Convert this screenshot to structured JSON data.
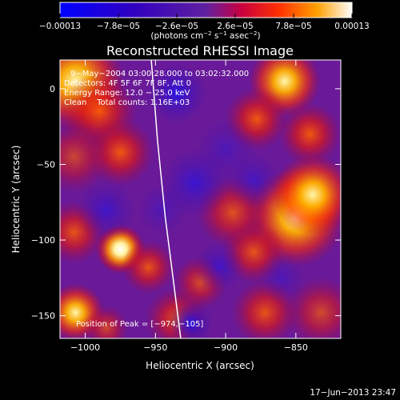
{
  "chart_data": {
    "type": "heatmap",
    "title": "Reconstructed RHESSI Image",
    "xlabel": "Heliocentric X (arcsec)",
    "ylabel": "Heliocentric Y (arcsec)",
    "xlim": [
      -1018,
      -818
    ],
    "ylim": [
      -165,
      19
    ],
    "x_ticks": [
      {
        "v": -1000,
        "label": "−1000"
      },
      {
        "v": -950,
        "label": "−950"
      },
      {
        "v": -900,
        "label": "−900"
      },
      {
        "v": -850,
        "label": "−850"
      }
    ],
    "y_ticks": [
      {
        "v": 0,
        "label": "0"
      },
      {
        "v": -50,
        "label": "−50"
      },
      {
        "v": -100,
        "label": "−100"
      },
      {
        "v": -150,
        "label": "−150"
      }
    ],
    "colorbar": {
      "min": -0.00013,
      "max": 0.00013,
      "ticks": [
        {
          "v": -0.00013,
          "label": "−0.00013"
        },
        {
          "v": -7.8e-05,
          "label": "−7.8e−05"
        },
        {
          "v": -2.6e-05,
          "label": "−2.6e−05"
        },
        {
          "v": 2.6e-05,
          "label": "2.6e−05"
        },
        {
          "v": 7.8e-05,
          "label": "7.8e−05"
        },
        {
          "v": 0.00013,
          "label": "0.00013"
        }
      ],
      "unit_prefix": "(photons cm",
      "unit_exp1": "−2",
      "unit_mid": " s",
      "unit_exp2": "−1",
      "unit_mid2": " asec",
      "unit_exp3": "−2",
      "unit_suffix": ")"
    },
    "annotations": {
      "time_range": "9−May−2004 03:00:28.000 to 03:02:32.000",
      "detectors": "Detectors: 4F 5F 6F 7F 8F, Att 0",
      "energy_range": "Energy Range: 12.0 − 25.0 keV",
      "clean_counts": "Clean    Total counts: 1.16E+03",
      "peak_position": "Position of Peak = [−974,−105]"
    },
    "peak": {
      "x": -974,
      "y": -105
    },
    "limb_curve": [
      {
        "x": -953.0,
        "y": 19.0
      },
      {
        "x": -948.5,
        "y": -35.0
      },
      {
        "x": -943.0,
        "y": -85.0
      },
      {
        "x": -937.5,
        "y": -125.0
      },
      {
        "x": -932.0,
        "y": -165.0
      }
    ],
    "blobs": [
      {
        "x": -1007,
        "y": 5,
        "w": 22,
        "v": 0.9
      },
      {
        "x": -990,
        "y": -15,
        "w": 17,
        "v": 0.55
      },
      {
        "x": -975,
        "y": -42,
        "w": 15,
        "v": 0.55
      },
      {
        "x": -1008,
        "y": -45,
        "w": 16,
        "v": 0.3
      },
      {
        "x": -1008,
        "y": -95,
        "w": 14,
        "v": 0.5
      },
      {
        "x": -975,
        "y": -106,
        "w": 11,
        "v": 1.05
      },
      {
        "x": -955,
        "y": -118,
        "w": 12,
        "v": 0.5
      },
      {
        "x": -1007,
        "y": -148,
        "w": 13,
        "v": 0.95
      },
      {
        "x": -985,
        "y": -158,
        "w": 10,
        "v": 0.35
      },
      {
        "x": -935,
        "y": -152,
        "w": 14,
        "v": 0.5
      },
      {
        "x": -918,
        "y": -128,
        "w": 12,
        "v": 0.4
      },
      {
        "x": -850,
        "y": -85,
        "w": 22,
        "v": 0.85
      },
      {
        "x": -838,
        "y": -70,
        "w": 18,
        "v": 0.9
      },
      {
        "x": -858,
        "y": 5,
        "w": 16,
        "v": 0.85
      },
      {
        "x": -878,
        "y": -20,
        "w": 14,
        "v": 0.55
      },
      {
        "x": -840,
        "y": -30,
        "w": 14,
        "v": 0.55
      },
      {
        "x": -895,
        "y": -82,
        "w": 16,
        "v": 0.45
      },
      {
        "x": -880,
        "y": -108,
        "w": 14,
        "v": 0.5
      },
      {
        "x": -872,
        "y": -148,
        "w": 15,
        "v": 0.5
      },
      {
        "x": -832,
        "y": -148,
        "w": 16,
        "v": 0.35
      },
      {
        "x": -935,
        "y": -3,
        "w": 14,
        "v": -0.45
      },
      {
        "x": -922,
        "y": -62,
        "w": 16,
        "v": -0.35
      },
      {
        "x": -945,
        "y": -80,
        "w": 13,
        "v": -0.2
      },
      {
        "x": -985,
        "y": -80,
        "w": 14,
        "v": -0.3
      },
      {
        "x": -925,
        "y": -155,
        "w": 10,
        "v": -0.55
      },
      {
        "x": -900,
        "y": -40,
        "w": 15,
        "v": -0.2
      },
      {
        "x": -880,
        "y": -60,
        "w": 13,
        "v": -0.25
      },
      {
        "x": -905,
        "y": -118,
        "w": 12,
        "v": -0.3
      },
      {
        "x": -860,
        "y": -125,
        "w": 11,
        "v": -0.2
      }
    ]
  },
  "footer": {
    "timestamp": "17−Jun−2013 23:47"
  }
}
